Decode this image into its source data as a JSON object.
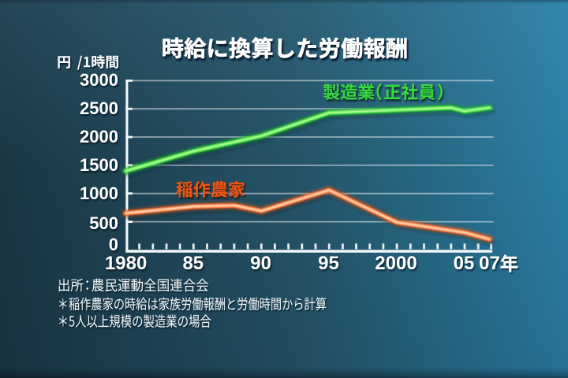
{
  "slide": {
    "kind": "tv-graphic-chart",
    "title": "時給に換算した労働報酬",
    "source": "出所：農民運動全国連合会",
    "notes": [
      "＊稲作農家の時給は家族労働報酬と労働時間から計算",
      "＊5人以上規模の製造業の場合"
    ]
  },
  "chart_data": {
    "type": "line",
    "title": "時給に換算した労働報酬",
    "ylabel": "円/1時間",
    "xlabel": "",
    "x_axis": {
      "range": [
        1980,
        2007
      ],
      "tick_labels": [
        "1980",
        "85",
        "90",
        "95",
        "2000",
        "05",
        "07年"
      ],
      "tick_display": [
        "1980",
        "85",
        "90",
        "95",
        "2000",
        "05",
        "07"
      ],
      "tick_years": [
        1980,
        1985,
        1990,
        1995,
        2000,
        2005,
        2007
      ],
      "year_suffix": "年",
      "minor_tick_step": 1
    },
    "y_axis": {
      "range": [
        0,
        3000
      ],
      "step": 500,
      "tick_labels": [
        "0",
        "500",
        "1000",
        "1500",
        "2000",
        "2500",
        "3000"
      ],
      "unit": "円/1時間"
    },
    "grid": "horizontal",
    "legend_position": "inline-labels",
    "series": [
      {
        "name": "製造業（正社員）",
        "color": "#30d835",
        "highlight": "#b9ff9e",
        "glow": "#22b42a",
        "label_color": "#35d83c",
        "x": [
          1980,
          1985,
          1990,
          1995,
          2000,
          2004,
          2005,
          2007
        ],
        "values": [
          1400,
          1750,
          2020,
          2430,
          2480,
          2520,
          2460,
          2520
        ]
      },
      {
        "name": "稲作農家",
        "color": "#ff6c2a",
        "highlight": "#ffddbd",
        "glow": "#f05a10",
        "label_color": "#f05318",
        "x": [
          1980,
          1985,
          1988,
          1990,
          1995,
          2000,
          2005,
          2007
        ],
        "values": [
          650,
          770,
          790,
          690,
          1060,
          490,
          310,
          190
        ]
      }
    ]
  },
  "palette": {
    "background_corner_bottom_left": "#173845",
    "background_corner_top_left": "#2b4a5a",
    "background_corner_bottom_right": "#2b7a99",
    "background_corner_top_right": "#3b86ab",
    "axis": "#f2f7f9",
    "grid": "#ffffff",
    "text": "#ffffff"
  }
}
